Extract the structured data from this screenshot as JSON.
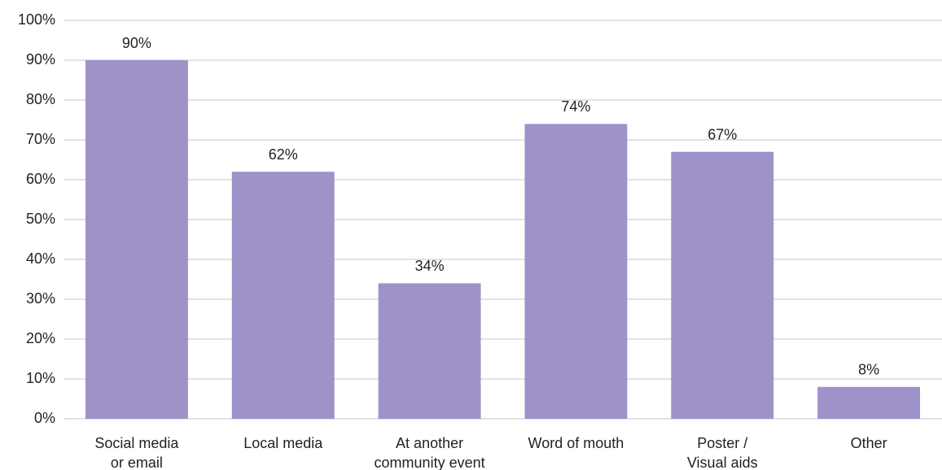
{
  "chart_data": {
    "type": "bar",
    "categories": [
      [
        "Social media",
        "or email"
      ],
      [
        "Local media"
      ],
      [
        "At another",
        "community event"
      ],
      [
        "Word of mouth"
      ],
      [
        "Poster /",
        "Visual aids"
      ],
      [
        "Other"
      ]
    ],
    "values": [
      90,
      62,
      34,
      74,
      67,
      8
    ],
    "value_labels": [
      "90%",
      "62%",
      "34%",
      "74%",
      "67%",
      "8%"
    ],
    "color": "#9f92c8",
    "ylim": [
      0,
      100
    ],
    "yticks": [
      {
        "value": 0,
        "label": "0%"
      },
      {
        "value": 10,
        "label": "10%"
      },
      {
        "value": 20,
        "label": "20%"
      },
      {
        "value": 30,
        "label": "30%"
      },
      {
        "value": 40,
        "label": "40%"
      },
      {
        "value": 50,
        "label": "50%"
      },
      {
        "value": 60,
        "label": "60%"
      },
      {
        "value": 70,
        "label": "70%"
      },
      {
        "value": 80,
        "label": "80%"
      },
      {
        "value": 90,
        "label": "90%"
      },
      {
        "value": 100,
        "label": "100%"
      }
    ],
    "grid": true
  }
}
